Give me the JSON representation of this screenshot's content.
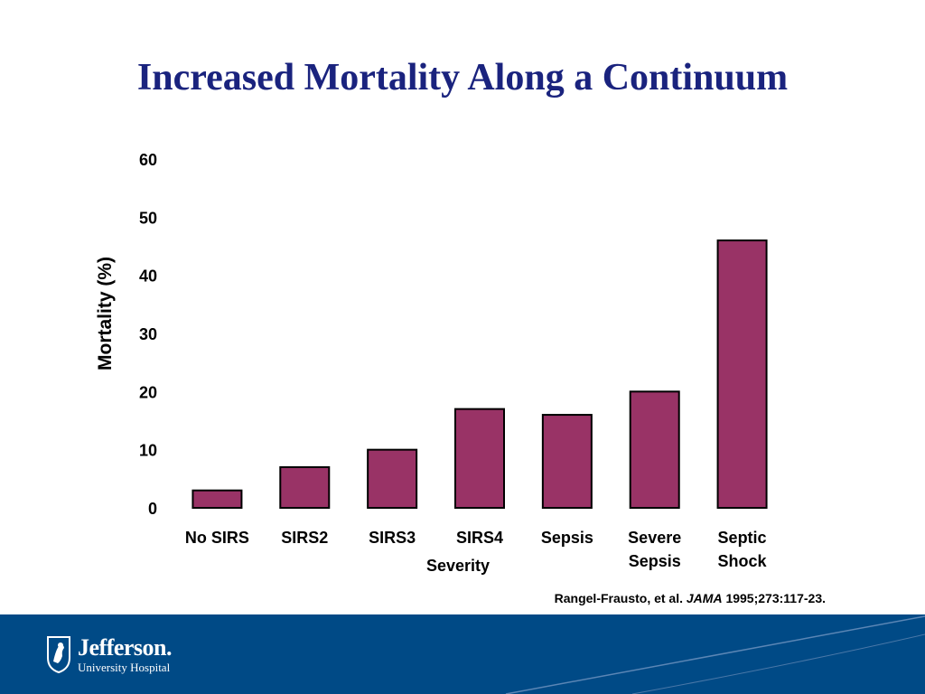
{
  "slide": {
    "title": "Increased Mortality Along a Continuum"
  },
  "chart_data": {
    "type": "bar",
    "title": "",
    "xlabel": "Severity",
    "ylabel": "Mortality (%)",
    "ylim": [
      0,
      60
    ],
    "yticks": [
      0,
      10,
      20,
      30,
      40,
      50,
      60
    ],
    "categories": [
      "No SIRS",
      "SIRS2",
      "SIRS3",
      "SIRS4",
      "Sepsis",
      "Severe Sepsis",
      "Septic Shock"
    ],
    "category_lines": [
      [
        "No SIRS"
      ],
      [
        "SIRS2"
      ],
      [
        "SIRS3"
      ],
      [
        "SIRS4"
      ],
      [
        "Sepsis"
      ],
      [
        "Severe",
        "Sepsis"
      ],
      [
        "Septic",
        "Shock"
      ]
    ],
    "values": [
      3,
      7,
      10,
      17,
      16,
      20,
      46
    ],
    "bar_color": "#993366",
    "bar_stroke": "#000000",
    "grid": false,
    "legend": "none"
  },
  "citation": {
    "authors": "Rangel-Frausto, et al.",
    "journal": "JAMA",
    "details": "1995;273:117-23."
  },
  "footer": {
    "band_color": "#004a86",
    "logo_name": "Jefferson.",
    "logo_subtitle": "University Hospital"
  }
}
